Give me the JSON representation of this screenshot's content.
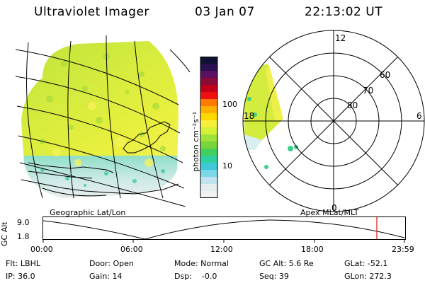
{
  "header": {
    "instrument": "Ultraviolet Imager",
    "date": "03 Jan 07",
    "time": "22:13:02 UT"
  },
  "left_map": {
    "caption": "Geographic Lat/Lon"
  },
  "right_map": {
    "caption": "Apex MLat/MLT",
    "mlt_labels": [
      "12",
      "18",
      "6",
      "0"
    ],
    "lat_labels": [
      "60",
      "70",
      "80"
    ]
  },
  "colorbar": {
    "ticks": [
      "100",
      "10"
    ],
    "unit_label": "photon cm⁻²s⁻¹",
    "colors": [
      "#111133",
      "#2a1050",
      "#5a1060",
      "#8a0a3a",
      "#c0001a",
      "#f01010",
      "#ff7a00",
      "#ffb000",
      "#ffd800",
      "#f6f03a",
      "#d6f03a",
      "#a0e23a",
      "#78d43a",
      "#3fcf5a",
      "#2fd0a0",
      "#3ec8d8",
      "#7ad8e8",
      "#c0e4ee",
      "#e4ecee",
      "#f2f2f2"
    ]
  },
  "altitude_plot": {
    "ylabel": "GC Alt",
    "yticks": [
      "9.0",
      "1.8"
    ],
    "xticks": [
      "00:00",
      "06:00",
      "12:00",
      "18:00",
      "23:59"
    ],
    "current_marker_color": "#e01010"
  },
  "info": {
    "filter": "Flt: LBHL",
    "door": "Door: Open",
    "mode": "Mode: Normal",
    "gc_alt": "GC Alt: 5.6 Re",
    "glat": "GLat: -52.1",
    "ip": "IP: 36.0",
    "gain": "Gain: 14",
    "dsp": "Dsp:    -0.0",
    "seq": "Seq: 39",
    "glon": "GLon: 272.3"
  }
}
